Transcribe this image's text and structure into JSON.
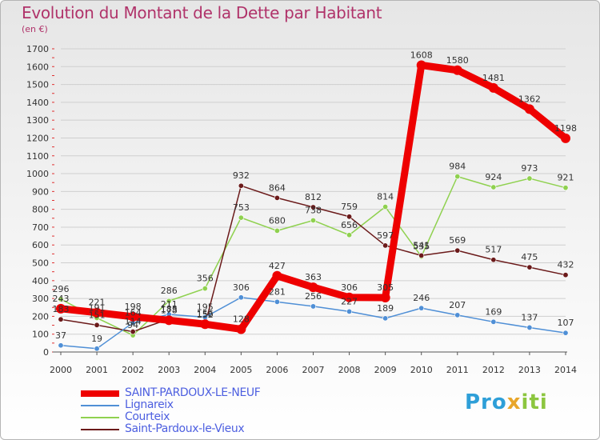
{
  "title": "Evolution du Montant de la Dette par Habitant",
  "unit_label": "(en €)",
  "logo": {
    "part1": "Pro",
    "part2": "x",
    "part3": "iti"
  },
  "chart_data": {
    "type": "line",
    "title": "Evolution du Montant de la Dette par Habitant",
    "ylabel": "(en €)",
    "xlabel": "",
    "x": [
      2000,
      2001,
      2002,
      2003,
      2004,
      2005,
      2006,
      2007,
      2008,
      2009,
      2010,
      2011,
      2012,
      2013,
      2014
    ],
    "ylim": [
      0,
      1700
    ],
    "yticks": [
      0,
      100,
      200,
      300,
      400,
      500,
      600,
      700,
      800,
      900,
      1000,
      1100,
      1200,
      1300,
      1400,
      1500,
      1600,
      1700
    ],
    "grid": "horizontal",
    "legend_position": "bottom-left",
    "series": [
      {
        "name": "SAINT-PARDOUX-LE-NEUF",
        "color": "#ee0000",
        "values": [
          243,
          221,
          198,
          178,
          156,
          128,
          427,
          363,
          306,
          305,
          1608,
          1580,
          1481,
          1362,
          1198
        ]
      },
      {
        "name": "Lignareix",
        "color": "#4f8fd6",
        "values": [
          37,
          19,
          164,
          211,
          195,
          306,
          281,
          256,
          227,
          189,
          246,
          207,
          169,
          137,
          107
        ]
      },
      {
        "name": "Courteix",
        "color": "#8fd14f",
        "values": [
          296,
          191,
          94,
          286,
          356,
          753,
          680,
          738,
          656,
          814,
          535,
          984,
          924,
          973,
          921
        ]
      },
      {
        "name": "Saint-Pardoux-le-Vieux",
        "color": "#6b1a1a",
        "values": [
          183,
          151,
          114,
          185,
          152,
          932,
          864,
          812,
          759,
          597,
          541,
          569,
          517,
          475,
          432
        ]
      }
    ]
  }
}
